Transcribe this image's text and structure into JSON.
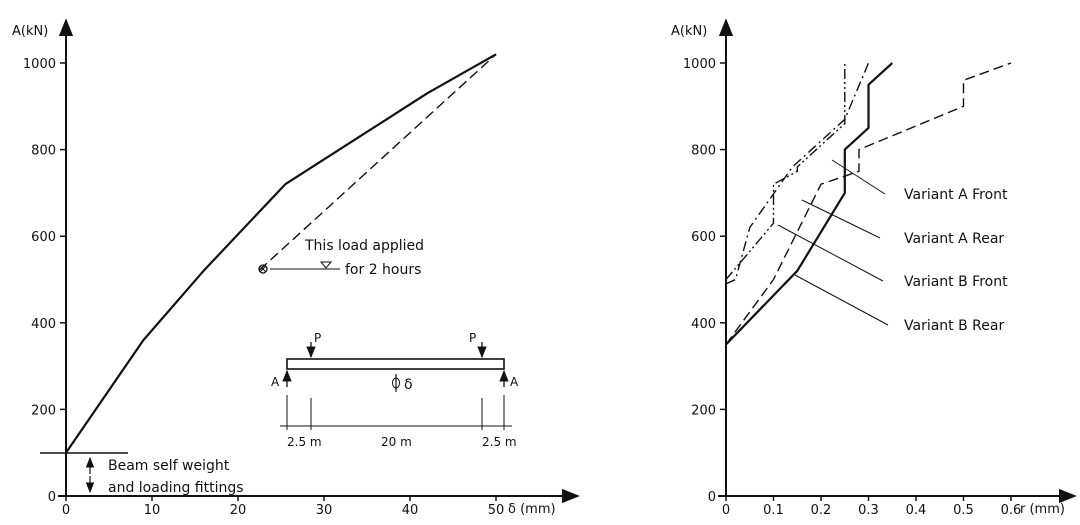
{
  "chart_data": [
    {
      "type": "line",
      "ylabel": "A(kN)",
      "xlabel": "δ (mm)",
      "xlim": [
        0,
        50
      ],
      "ylim": [
        0,
        1000
      ],
      "x_ticks": [
        0,
        10,
        20,
        30,
        40,
        50
      ],
      "x_tick_labels": [
        "0",
        "10",
        "20",
        "30",
        "40",
        "50"
      ],
      "y_ticks": [
        0,
        200,
        400,
        600,
        800,
        1000
      ],
      "series": [
        {
          "style": "solid",
          "x": [
            0,
            9,
            16,
            25.5,
            42,
            50
          ],
          "y": [
            100,
            360,
            520,
            720,
            930,
            1020
          ]
        },
        {
          "style": "dashed",
          "x": [
            22.5,
            50
          ],
          "y": [
            522,
            1020
          ]
        }
      ],
      "annotations": {
        "load_applied": "This load applied",
        "for_hours": "for 2 hours",
        "self_weight_1": "Beam self weight",
        "self_weight_2": "and loading fittings"
      },
      "inset": {
        "load_left": "P",
        "load_right": "P",
        "support_left": "A",
        "support_right": "A",
        "deflection": "δ",
        "dim_left": "2.5 m",
        "dim_mid": "20 m",
        "dim_right": "2.5 m"
      }
    },
    {
      "type": "line",
      "ylabel": "A(kN)",
      "xlabel": "r (mm)",
      "xlim": [
        0,
        0.6
      ],
      "ylim": [
        0,
        1000
      ],
      "x_ticks": [
        0,
        0.1,
        0.2,
        0.3,
        0.4,
        0.5,
        0.6
      ],
      "x_tick_labels": [
        "0",
        "0.1",
        "0.2",
        "0.3",
        "0.4",
        "0.5",
        "0.6"
      ],
      "y_ticks": [
        0,
        200,
        400,
        600,
        800,
        1000
      ],
      "series": [
        {
          "name": "Variant  A  Front",
          "style": "solid",
          "x": [
            0,
            0.15,
            0.25,
            0.25,
            0.3,
            0.3,
            0.35
          ],
          "y": [
            350,
            520,
            700,
            800,
            850,
            950,
            1000
          ]
        },
        {
          "name": "Variant  A  Rear",
          "style": "dashdot",
          "x": [
            0,
            0.02,
            0.05,
            0.14,
            0.25,
            0.3
          ],
          "y": [
            490,
            500,
            620,
            760,
            870,
            1000
          ]
        },
        {
          "name": "Variant  B  Front",
          "style": "dashed",
          "x": [
            0,
            0.1,
            0.2,
            0.28,
            0.28,
            0.5,
            0.5,
            0.6
          ],
          "y": [
            350,
            500,
            720,
            750,
            800,
            900,
            960,
            1000
          ]
        },
        {
          "name": "Variant  B  Rear",
          "style": "dashdotdot",
          "x": [
            0,
            0.1,
            0.1,
            0.15,
            0.15,
            0.25,
            0.25,
            0.25
          ],
          "y": [
            500,
            630,
            720,
            750,
            760,
            860,
            860,
            1000
          ]
        }
      ]
    }
  ]
}
